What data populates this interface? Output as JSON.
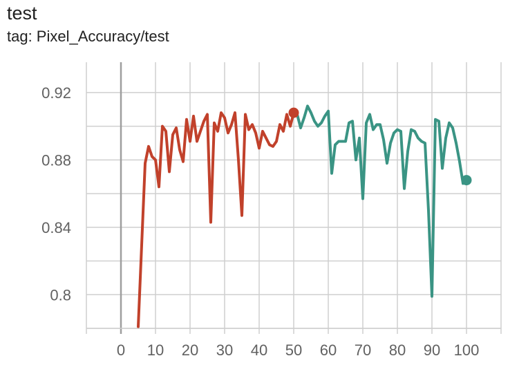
{
  "card": {
    "title": "test",
    "subtitle": "tag: Pixel_Accuracy/test"
  },
  "colors": {
    "series_a": "#c1412b",
    "series_b": "#3a9484",
    "grid": "#cfcfcf",
    "axis": "#9e9e9e"
  },
  "chart_data": {
    "type": "line",
    "title": "",
    "xlabel": "",
    "ylabel": "",
    "xlim": [
      -10,
      110
    ],
    "ylim": [
      0.78,
      0.938
    ],
    "xticks": [
      0,
      10,
      20,
      30,
      40,
      50,
      60,
      70,
      80,
      90,
      100
    ],
    "yticks": [
      0.8,
      0.84,
      0.88,
      0.92
    ],
    "ytick_labels": [
      "0.8",
      "0.84",
      "0.88",
      "0.92"
    ],
    "grid": true,
    "legend": "none",
    "series": [
      {
        "color": "#c1412b",
        "end_marker": true,
        "x": [
          5,
          7,
          8,
          9,
          10,
          11,
          12,
          13,
          14,
          15,
          16,
          17,
          18,
          19,
          20,
          21,
          22,
          23,
          24,
          25,
          26,
          27,
          28,
          29,
          30,
          31,
          32,
          33,
          34,
          35,
          36,
          37,
          38,
          39,
          40,
          41,
          42,
          43,
          44,
          45,
          46,
          47,
          48,
          49,
          50
        ],
        "y": [
          0.781,
          0.878,
          0.888,
          0.882,
          0.88,
          0.864,
          0.9,
          0.897,
          0.873,
          0.895,
          0.899,
          0.886,
          0.879,
          0.904,
          0.891,
          0.906,
          0.891,
          0.897,
          0.903,
          0.907,
          0.843,
          0.902,
          0.897,
          0.908,
          0.905,
          0.896,
          0.901,
          0.908,
          0.88,
          0.847,
          0.907,
          0.898,
          0.901,
          0.896,
          0.887,
          0.897,
          0.893,
          0.889,
          0.888,
          0.891,
          0.901,
          0.897,
          0.907,
          0.9,
          0.908
        ]
      },
      {
        "color": "#3a9484",
        "end_marker": true,
        "x": [
          50,
          51,
          52,
          53,
          54,
          55,
          56,
          57,
          58,
          59,
          60,
          61,
          62,
          63,
          64,
          65,
          66,
          67,
          68,
          69,
          70,
          71,
          72,
          73,
          74,
          75,
          76,
          77,
          78,
          79,
          80,
          81,
          82,
          83,
          84,
          85,
          86,
          87,
          88,
          89,
          90,
          91,
          92,
          93,
          94,
          95,
          96,
          97,
          98,
          99,
          100
        ],
        "y": [
          0.908,
          0.907,
          0.899,
          0.905,
          0.912,
          0.908,
          0.903,
          0.9,
          0.902,
          0.906,
          0.909,
          0.872,
          0.889,
          0.891,
          0.891,
          0.891,
          0.902,
          0.903,
          0.88,
          0.893,
          0.857,
          0.902,
          0.907,
          0.898,
          0.901,
          0.901,
          0.892,
          0.878,
          0.89,
          0.896,
          0.898,
          0.897,
          0.863,
          0.885,
          0.898,
          0.897,
          0.893,
          0.891,
          0.89,
          0.85,
          0.799,
          0.904,
          0.903,
          0.875,
          0.893,
          0.902,
          0.899,
          0.89,
          0.879,
          0.866,
          0.868
        ]
      }
    ]
  }
}
